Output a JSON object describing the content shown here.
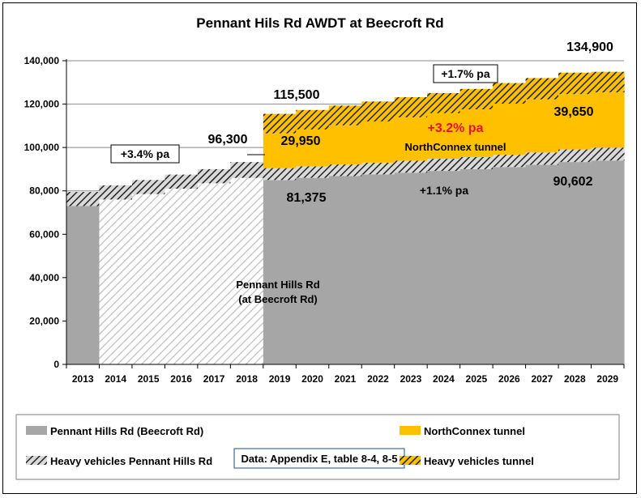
{
  "chart_data": {
    "type": "area",
    "title": "Pennant Hils Rd AWDT at Beecroft Rd",
    "categories": [
      "2013",
      "2014",
      "2015",
      "2016",
      "2017",
      "2018",
      "2019",
      "2020",
      "2021",
      "2022",
      "2023",
      "2024",
      "2025",
      "2026",
      "2027",
      "2028",
      "2029"
    ],
    "ylim": [
      0,
      140000
    ],
    "yticks": [
      "0",
      "20,000",
      "40,000",
      "60,000",
      "80,000",
      "100,000",
      "120,000",
      "140,000"
    ],
    "ytick_values": [
      0,
      20000,
      40000,
      60000,
      80000,
      100000,
      120000,
      140000
    ],
    "grid": true,
    "series": [
      {
        "name": "Pennant Hills Rd (Beecroft Rd)",
        "color": "#a6a6a6",
        "values": [
          73000,
          76000,
          78500,
          81000,
          83500,
          86000,
          85000,
          86000,
          86800,
          87600,
          88400,
          89200,
          90000,
          91000,
          92000,
          93300,
          94000
        ]
      },
      {
        "name": "Heavy vehicles Pennant Hills Rd",
        "pattern": "hatch-gray",
        "values": [
          6500,
          6500,
          6500,
          6500,
          6500,
          7300,
          5500,
          5300,
          5400,
          5400,
          5500,
          5600,
          5600,
          5700,
          5700,
          5800,
          5900
        ]
      },
      {
        "name": "NorthConnex tunnel",
        "color": "#ffc000",
        "values": [
          0,
          0,
          0,
          0,
          0,
          0,
          16000,
          17000,
          18000,
          19000,
          20000,
          21000,
          22000,
          23500,
          24500,
          25500,
          25500
        ]
      },
      {
        "name": "Heavy vehicles tunnel",
        "pattern": "hatch-gold",
        "values": [
          0,
          0,
          0,
          0,
          0,
          0,
          9000,
          9000,
          9100,
          9200,
          9300,
          9300,
          9400,
          9500,
          9800,
          9900,
          9500
        ]
      }
    ],
    "annotations": {
      "val_96300": "96,300",
      "val_115500": "115,500",
      "val_134900": "134,900",
      "val_29950": "29,950",
      "val_39650": "39,650",
      "val_81375": "81,375",
      "val_90602": "90,602",
      "growth_hist": "+3.4% pa",
      "growth_total": "+1.7% pa",
      "growth_tunnel": "+3.2% pa",
      "growth_road": "+1.1% pa",
      "tunnel_label": "NorthConnex tunnel",
      "road_label_line1": "Pennant Hills Rd",
      "road_label_line2": "(at Beecroft Rd)"
    },
    "legend": {
      "position": "bottom",
      "items": [
        {
          "label": "Pennant Hills Rd (Beecroft Rd)",
          "swatch": "gray"
        },
        {
          "label": "NorthConnex tunnel",
          "swatch": "gold"
        },
        {
          "label": "Heavy vehicles Pennant Hills Rd",
          "swatch": "hatch-gray"
        },
        {
          "label": "Heavy vehicles tunnel",
          "swatch": "hatch-gold"
        }
      ],
      "source_note": "Data: Appendix E, table 8-4, 8-5"
    }
  }
}
